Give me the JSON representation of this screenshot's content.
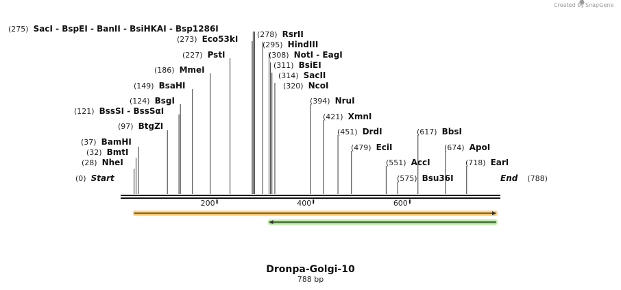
{
  "credit": {
    "text": "Created by",
    "brand": "SnapGene"
  },
  "sequence": {
    "name": "Dronpa-Golgi-10",
    "length_label": "788 bp",
    "length": 788
  },
  "axis": {
    "ticks": [
      "200",
      "400",
      "600"
    ]
  },
  "colors": {
    "backbone": "#111111",
    "site_line": "#333333",
    "feature_forward_fill": "#f0c060",
    "feature_forward_glow": "#ffd79a",
    "feature_reverse_fill": "#7ed85a",
    "feature_reverse_glow": "#c8f0b4"
  },
  "features": [
    {
      "direction": "forward",
      "start": 28,
      "end": 788
    },
    {
      "direction": "reverse",
      "start": 308,
      "end": 788
    }
  ],
  "sites": [
    {
      "pos": "(0)",
      "label": "Start",
      "bp": 0,
      "italic": true
    },
    {
      "pos": "(28)",
      "label": "NheI",
      "bp": 28
    },
    {
      "pos": "(32)",
      "label": "BmtI",
      "bp": 32
    },
    {
      "pos": "(37)",
      "label": "BamHI",
      "bp": 37
    },
    {
      "pos": "(97)",
      "label": "BtgZI",
      "bp": 97
    },
    {
      "pos": "(121)",
      "label": "BssSI - BssSαI",
      "bp": 121
    },
    {
      "pos": "(124)",
      "label": "BsgI",
      "bp": 124
    },
    {
      "pos": "(149)",
      "label": "BsaHI",
      "bp": 149
    },
    {
      "pos": "(186)",
      "label": "MmeI",
      "bp": 186
    },
    {
      "pos": "(227)",
      "label": "PstI",
      "bp": 227
    },
    {
      "pos": "(273)",
      "label": "Eco53kI",
      "bp": 273
    },
    {
      "pos": "(275)",
      "label": "SacI - BspEI - BanII - BsiHKAI - Bsp1286I",
      "bp": 275
    },
    {
      "pos": "(278)",
      "label": "RsrII",
      "bp": 278
    },
    {
      "pos": "(295)",
      "label": "HindIII",
      "bp": 295
    },
    {
      "pos": "(308)",
      "label": "NotI - EagI",
      "bp": 308
    },
    {
      "pos": "(311)",
      "label": "BsiEI",
      "bp": 311
    },
    {
      "pos": "(314)",
      "label": "SacII",
      "bp": 314
    },
    {
      "pos": "(320)",
      "label": "NcoI",
      "bp": 320
    },
    {
      "pos": "(394)",
      "label": "NruI",
      "bp": 394
    },
    {
      "pos": "(421)",
      "label": "XmnI",
      "bp": 421
    },
    {
      "pos": "(451)",
      "label": "DrdI",
      "bp": 451
    },
    {
      "pos": "(479)",
      "label": "EciI",
      "bp": 479
    },
    {
      "pos": "(551)",
      "label": "AccI",
      "bp": 551
    },
    {
      "pos": "(575)",
      "label": "Bsu36I",
      "bp": 575
    },
    {
      "pos": "(617)",
      "label": "BbsI",
      "bp": 617
    },
    {
      "pos": "(674)",
      "label": "ApoI",
      "bp": 674
    },
    {
      "pos": "(718)",
      "label": "EarI",
      "bp": 718
    },
    {
      "pos": "(788)",
      "label": "End",
      "bp": 788,
      "italic": true
    }
  ]
}
